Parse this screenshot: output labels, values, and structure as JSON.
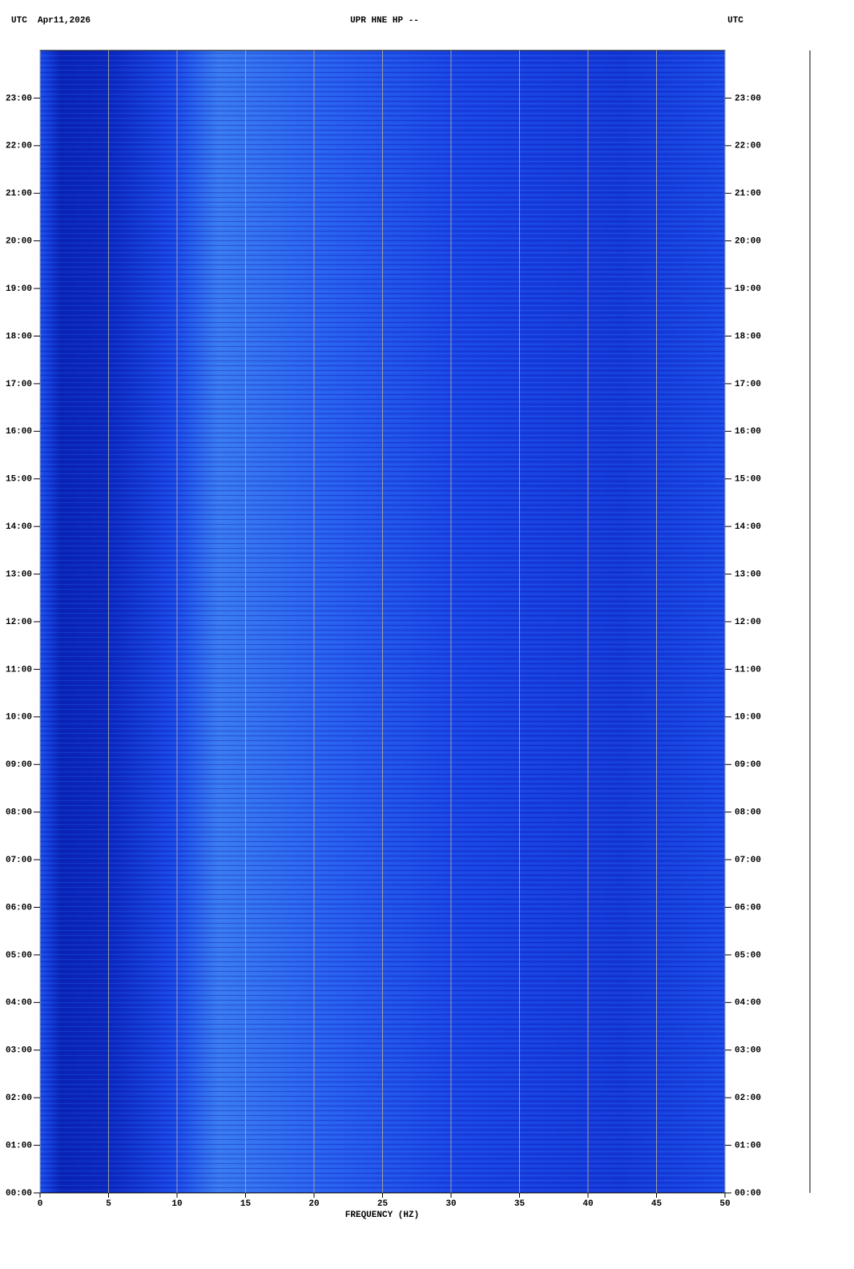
{
  "chart_data": {
    "type": "spectrogram",
    "title": "UPR HNE HP --",
    "header_left": "UTC  Apr11,2026",
    "header_right": "UTC",
    "xlabel": "FREQUENCY (HZ)",
    "xlim": [
      0,
      50
    ],
    "xticks": [
      0,
      5,
      10,
      15,
      20,
      25,
      30,
      35,
      40,
      45,
      50
    ],
    "ylim": [
      0,
      24
    ],
    "yticks": [
      {
        "value": 0,
        "label": "00:00"
      },
      {
        "value": 1,
        "label": "01:00"
      },
      {
        "value": 2,
        "label": "02:00"
      },
      {
        "value": 3,
        "label": "03:00"
      },
      {
        "value": 4,
        "label": "04:00"
      },
      {
        "value": 5,
        "label": "05:00"
      },
      {
        "value": 6,
        "label": "06:00"
      },
      {
        "value": 7,
        "label": "07:00"
      },
      {
        "value": 8,
        "label": "08:00"
      },
      {
        "value": 9,
        "label": "09:00"
      },
      {
        "value": 10,
        "label": "10:00"
      },
      {
        "value": 11,
        "label": "11:00"
      },
      {
        "value": 12,
        "label": "12:00"
      },
      {
        "value": 13,
        "label": "13:00"
      },
      {
        "value": 14,
        "label": "14:00"
      },
      {
        "value": 15,
        "label": "15:00"
      },
      {
        "value": 16,
        "label": "16:00"
      },
      {
        "value": 17,
        "label": "17:00"
      },
      {
        "value": 18,
        "label": "18:00"
      },
      {
        "value": 19,
        "label": "19:00"
      },
      {
        "value": 20,
        "label": "20:00"
      },
      {
        "value": 21,
        "label": "21:00"
      },
      {
        "value": 22,
        "label": "22:00"
      },
      {
        "value": 23,
        "label": "23:00"
      }
    ],
    "grid": true,
    "grid_color": "#a0a0a0"
  }
}
